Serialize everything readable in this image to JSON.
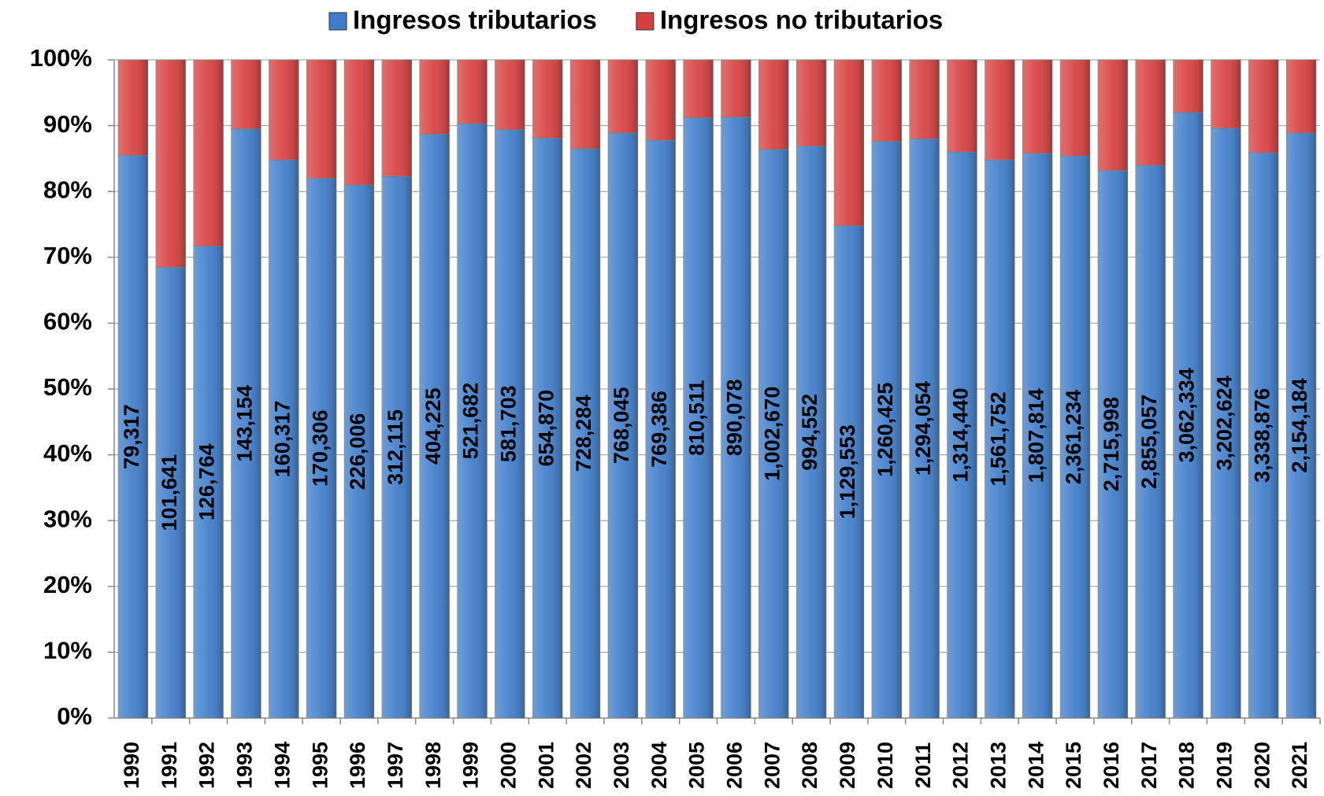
{
  "chart_data": {
    "type": "stacked_bar_percent",
    "categories": [
      "1990",
      "1991",
      "1992",
      "1993",
      "1994",
      "1995",
      "1996",
      "1997",
      "1998",
      "1999",
      "2000",
      "2001",
      "2002",
      "2003",
      "2004",
      "2005",
      "2006",
      "2007",
      "2008",
      "2009",
      "2010",
      "2011",
      "2012",
      "2013",
      "2014",
      "2015",
      "2016",
      "2017",
      "2018",
      "2019",
      "2020",
      "2021"
    ],
    "series": [
      {
        "name": "Ingresos tributarios",
        "color": "#3f7cc9",
        "values": [
          85.5,
          68.5,
          71.7,
          89.5,
          84.8,
          82,
          81,
          82.3,
          88.7,
          90.3,
          89.4,
          88.1,
          86.5,
          88.9,
          87.8,
          91.2,
          91.3,
          86.4,
          86.9,
          74.8,
          87.6,
          88,
          86,
          84.8,
          85.8,
          85.4,
          83.2,
          84,
          92,
          89.6,
          85.9,
          88.9
        ],
        "data_labels": [
          "79,317",
          "101,641",
          "126,764",
          "143,154",
          "160,317",
          "170,306",
          "226,006",
          "312,115",
          "404,225",
          "521,682",
          "581,703",
          "654,870",
          "728,284",
          "768,045",
          "769,386",
          "810,511",
          "890,078",
          "1,002,670",
          "994,552",
          "1,129,553",
          "1,260,425",
          "1,294,054",
          "1,314,440",
          "1,561,752",
          "1,807,814",
          "2,361,234",
          "2,715,998",
          "2,855,057",
          "3,062,334",
          "3,202,624",
          "3,338,876",
          "2,154,184"
        ]
      },
      {
        "name": "Ingresos no tributarios",
        "color": "#d63f3f",
        "values": [
          14.5,
          31.5,
          28.3,
          10.5,
          15.2,
          18,
          19,
          17.7,
          11.3,
          9.7,
          10.6,
          11.9,
          13.5,
          11.1,
          12.2,
          8.8,
          8.7,
          13.6,
          13.1,
          25.2,
          12.4,
          12,
          14,
          15.2,
          14.2,
          14.6,
          16.8,
          16,
          8,
          10.4,
          14.1,
          11.1
        ]
      }
    ],
    "ylim": [
      0,
      100
    ],
    "yticks": [
      {
        "value": 0,
        "label": "0%"
      },
      {
        "value": 10,
        "label": "10%"
      },
      {
        "value": 20,
        "label": "20%"
      },
      {
        "value": 30,
        "label": "30%"
      },
      {
        "value": 40,
        "label": "40%"
      },
      {
        "value": 50,
        "label": "50%"
      },
      {
        "value": 60,
        "label": "60%"
      },
      {
        "value": 70,
        "label": "70%"
      },
      {
        "value": 80,
        "label": "80%"
      },
      {
        "value": 90,
        "label": "90%"
      },
      {
        "value": 100,
        "label": "100%"
      }
    ],
    "grid": true,
    "legend": "top"
  }
}
